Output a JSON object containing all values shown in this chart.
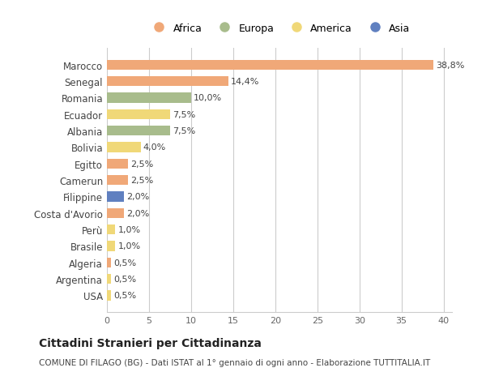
{
  "countries": [
    "Marocco",
    "Senegal",
    "Romania",
    "Ecuador",
    "Albania",
    "Bolivia",
    "Egitto",
    "Camerun",
    "Filippine",
    "Costa d'Avorio",
    "Perù",
    "Brasile",
    "Algeria",
    "Argentina",
    "USA"
  ],
  "values": [
    38.8,
    14.4,
    10.0,
    7.5,
    7.5,
    4.0,
    2.5,
    2.5,
    2.0,
    2.0,
    1.0,
    1.0,
    0.5,
    0.5,
    0.5
  ],
  "labels": [
    "38,8%",
    "14,4%",
    "10,0%",
    "7,5%",
    "7,5%",
    "4,0%",
    "2,5%",
    "2,5%",
    "2,0%",
    "2,0%",
    "1,0%",
    "1,0%",
    "0,5%",
    "0,5%",
    "0,5%"
  ],
  "categories": [
    "Africa",
    "Africa",
    "Europa",
    "America",
    "Europa",
    "America",
    "Africa",
    "Africa",
    "Asia",
    "Africa",
    "America",
    "America",
    "Africa",
    "America",
    "America"
  ],
  "colors": {
    "Africa": "#F0A878",
    "Europa": "#A8BC8C",
    "America": "#F0D878",
    "Asia": "#6080C0"
  },
  "legend_order": [
    "Africa",
    "Europa",
    "America",
    "Asia"
  ],
  "title": "Cittadini Stranieri per Cittadinanza",
  "subtitle": "COMUNE DI FILAGO (BG) - Dati ISTAT al 1° gennaio di ogni anno - Elaborazione TUTTITALIA.IT",
  "xlim": [
    0,
    41
  ],
  "xticks": [
    0,
    5,
    10,
    15,
    20,
    25,
    30,
    35,
    40
  ],
  "bg_color": "#FFFFFF",
  "grid_color": "#CCCCCC",
  "bar_height": 0.6
}
